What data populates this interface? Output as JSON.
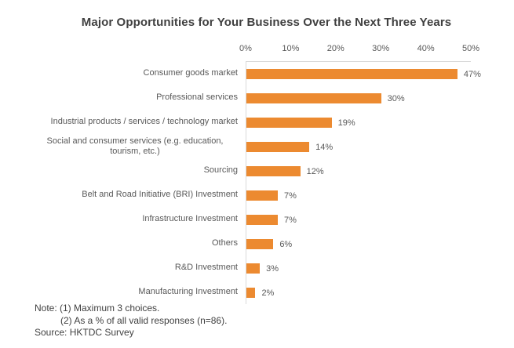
{
  "title": "Major Opportunities for Your Business Over the Next Three Years",
  "chart_data": {
    "type": "bar",
    "orientation": "horizontal",
    "title": "Major Opportunities for Your Business Over the Next Three Years",
    "categories": [
      "Consumer goods market",
      "Professional services",
      "Industrial products / services / technology market",
      "Social and consumer services (e.g. education, tourism, etc.)",
      "Sourcing",
      "Belt and Road Initiative (BRI) Investment",
      "Infrastructure Investment",
      "Others",
      "R&D Investment",
      "Manufacturing Investment"
    ],
    "values": [
      47,
      30,
      19,
      14,
      12,
      7,
      7,
      6,
      3,
      2
    ],
    "value_labels": [
      "47%",
      "30%",
      "19%",
      "14%",
      "12%",
      "7%",
      "7%",
      "6%",
      "3%",
      "2%"
    ],
    "x_ticks": [
      "0%",
      "10%",
      "20%",
      "30%",
      "40%",
      "50%"
    ],
    "xlim": [
      0,
      50
    ],
    "xlabel": "",
    "ylabel": "",
    "grid": false,
    "legend": false,
    "bar_color": "#EC8A30",
    "axis_line_color": "#D9D9D9",
    "label_color": "#595959",
    "title_color": "#404040"
  },
  "notes": {
    "line1": "Note: (1) Maximum 3 choices.",
    "line2": "(2) As a % of all valid responses (n=86).",
    "source": "Source:  HKTDC Survey"
  }
}
